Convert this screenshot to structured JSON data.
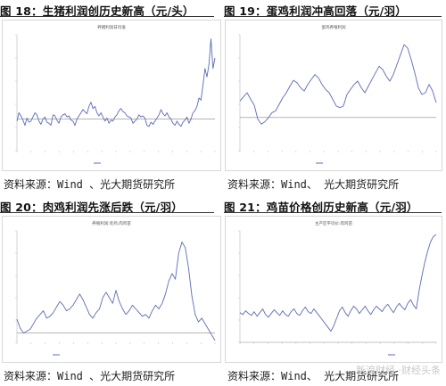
{
  "figures": [
    {
      "caption": "图 18：生猪利润创历史新高（元/头）",
      "source": "资料来源：Wind 、光大期货研究所",
      "chart_data": {
        "type": "line",
        "title": "养猪利润日均值",
        "legend": "",
        "legend_position": "bottom-center",
        "grid": false,
        "ylim": [
          -1500,
          4000
        ],
        "baseline": 0,
        "x": [
          0,
          1,
          2,
          3,
          4,
          5,
          6,
          7,
          8,
          9,
          10,
          11,
          12,
          13,
          14,
          15,
          16,
          17,
          18,
          19,
          20,
          21,
          22,
          23,
          24,
          25,
          26,
          27,
          28,
          29,
          30,
          31,
          32,
          33,
          34,
          35,
          36,
          37,
          38,
          39,
          40,
          41,
          42,
          43,
          44,
          45,
          46,
          47,
          48,
          49,
          50,
          51,
          52,
          53,
          54,
          55,
          56,
          57,
          58,
          59,
          60,
          61,
          62,
          63,
          64,
          65,
          66,
          67,
          68,
          69,
          70,
          71,
          72,
          73,
          74,
          75,
          76,
          77,
          78,
          79,
          80,
          81,
          82,
          83,
          84,
          85,
          86,
          87,
          88,
          89,
          90,
          91,
          92,
          93,
          94,
          95,
          96,
          97,
          98,
          99
        ],
        "series": [
          {
            "name": "",
            "color": "#5b6bb5",
            "values": [
              -100,
              300,
              150,
              -50,
              -300,
              50,
              -150,
              -100,
              100,
              300,
              200,
              -100,
              -250,
              0,
              100,
              -150,
              -200,
              -300,
              200,
              150,
              -50,
              -200,
              100,
              200,
              250,
              100,
              150,
              -50,
              -100,
              -300,
              0,
              150,
              300,
              450,
              350,
              250,
              600,
              800,
              500,
              600,
              300,
              150,
              300,
              100,
              -100,
              50,
              -200,
              -50,
              -100,
              100,
              200,
              400,
              500,
              350,
              300,
              150,
              100,
              50,
              -200,
              -100,
              0,
              200,
              100,
              150,
              50,
              -300,
              -350,
              -150,
              -250,
              -100,
              50,
              200,
              450,
              250,
              150,
              300,
              100,
              0,
              -200,
              -300,
              -100,
              -250,
              -350,
              -150,
              -50,
              100,
              -200,
              0,
              300,
              400,
              600,
              1000,
              900,
              1600,
              2400,
              2000,
              2600,
              3800,
              2400,
              2900
            ]
          }
        ]
      }
    },
    {
      "caption": "图 19：蛋鸡利润冲高回落（元/羽）",
      "source": "资料来源：Wind、 光大期货研究所",
      "chart_data": {
        "type": "line",
        "title": "蛋鸡养殖利润",
        "legend": "",
        "legend_position": "bottom-center",
        "grid": false,
        "ylim": [
          -40,
          100
        ],
        "baseline": 0,
        "x": [
          0,
          1,
          2,
          3,
          4,
          5,
          6,
          7,
          8,
          9,
          10,
          11,
          12,
          13,
          14,
          15,
          16,
          17,
          18,
          19,
          20,
          21,
          22,
          23,
          24,
          25,
          26,
          27,
          28,
          29,
          30,
          31,
          32,
          33,
          34,
          35,
          36,
          37,
          38,
          39,
          40,
          41,
          42,
          43,
          44,
          45,
          46,
          47,
          48,
          49,
          50,
          51,
          52,
          53,
          54,
          55
        ],
        "series": [
          {
            "name": "",
            "color": "#5b6bb5",
            "values": [
              20,
              25,
              30,
              22,
              15,
              -2,
              -8,
              -5,
              0,
              6,
              8,
              16,
              24,
              30,
              38,
              45,
              42,
              36,
              32,
              40,
              46,
              52,
              48,
              40,
              34,
              30,
              22,
              14,
              12,
              14,
              28,
              34,
              40,
              44,
              36,
              30,
              38,
              46,
              54,
              62,
              58,
              50,
              44,
              52,
              64,
              76,
              88,
              84,
              70,
              54,
              36,
              28,
              30,
              40,
              32,
              18
            ]
          }
        ]
      }
    },
    {
      "caption": "图 20：肉鸡利润先涨后跌（元/羽）",
      "source": "资料来源：Wind 、光大期货研究所",
      "chart_data": {
        "type": "line",
        "title": "养殖利润:毛鸡:肉鸡苗",
        "legend": "",
        "legend_position": "bottom-left",
        "grid": false,
        "ylim": [
          -1,
          11
        ],
        "baseline": 0,
        "x": [
          0,
          1,
          2,
          3,
          4,
          5,
          6,
          7,
          8,
          9,
          10,
          11,
          12,
          13,
          14,
          15,
          16,
          17,
          18,
          19,
          20,
          21,
          22,
          23,
          24,
          25,
          26,
          27,
          28,
          29,
          30,
          31,
          32,
          33,
          34,
          35,
          36,
          37,
          38,
          39,
          40,
          41,
          42,
          43,
          44,
          45,
          46,
          47,
          48,
          49,
          50,
          51,
          52,
          53,
          54,
          55,
          56,
          57,
          58,
          59,
          60
        ],
        "series": [
          {
            "name": "",
            "color": "#5b6bb5",
            "values": [
              1.5,
              0.5,
              0.0,
              0.2,
              0.4,
              1.0,
              1.6,
              2.0,
              2.4,
              1.6,
              1.8,
              2.2,
              2.8,
              3.4,
              3.0,
              2.4,
              2.6,
              3.0,
              3.6,
              4.2,
              3.6,
              2.8,
              2.0,
              1.6,
              2.2,
              2.6,
              3.8,
              4.4,
              3.8,
              3.2,
              4.6,
              3.4,
              2.6,
              2.0,
              2.4,
              3.0,
              2.6,
              2.2,
              1.8,
              2.0,
              1.6,
              2.4,
              3.0,
              2.6,
              3.2,
              4.2,
              5.6,
              6.4,
              5.8,
              8.6,
              9.8,
              9.2,
              7.0,
              4.0,
              2.0,
              1.2,
              1.6,
              1.0,
              0.4,
              -0.2,
              -0.8
            ]
          }
        ]
      }
    },
    {
      "caption": "图 21：鸡苗价格创历史新高（元/羽）",
      "source": "资料来源：Wind、 光大期货研究所",
      "chart_data": {
        "type": "line",
        "title": "主产区平均价:肉鸡苗",
        "legend": "",
        "legend_position": "bottom-right",
        "grid": false,
        "ylim": [
          0,
          12
        ],
        "baseline": 0,
        "x": [
          0,
          1,
          2,
          3,
          4,
          5,
          6,
          7,
          8,
          9,
          10,
          11,
          12,
          13,
          14,
          15,
          16,
          17,
          18,
          19,
          20,
          21,
          22,
          23,
          24,
          25,
          26,
          27,
          28,
          29,
          30,
          31,
          32,
          33,
          34,
          35,
          36,
          37,
          38,
          39,
          40,
          41,
          42,
          43,
          44,
          45,
          46,
          47,
          48,
          49,
          50,
          51,
          52,
          53,
          54,
          55,
          56,
          57,
          58,
          59,
          60,
          61,
          62,
          63,
          64,
          65,
          66,
          67,
          68,
          69
        ],
        "series": [
          {
            "name": "",
            "color": "#5b6bb5",
            "values": [
              3.2,
              3.0,
              3.4,
              3.1,
              2.9,
              3.3,
              2.8,
              3.2,
              3.6,
              3.0,
              2.7,
              3.1,
              3.5,
              3.2,
              2.9,
              3.4,
              3.0,
              2.8,
              3.3,
              3.6,
              3.1,
              2.9,
              3.4,
              3.8,
              3.3,
              3.1,
              3.6,
              3.2,
              2.8,
              2.4,
              2.0,
              1.6,
              1.2,
              1.8,
              2.6,
              3.4,
              3.8,
              3.2,
              2.8,
              3.4,
              3.9,
              3.6,
              3.1,
              3.5,
              3.9,
              3.4,
              3.0,
              3.5,
              3.9,
              3.6,
              3.3,
              3.8,
              4.1,
              3.6,
              3.2,
              3.8,
              4.2,
              3.8,
              3.5,
              4.2,
              4.6,
              4.0,
              3.6,
              5.6,
              7.2,
              8.6,
              9.8,
              10.8,
              11.4,
              11.6
            ]
          }
        ]
      }
    }
  ],
  "watermark": "新浪财经 ·财经头条"
}
